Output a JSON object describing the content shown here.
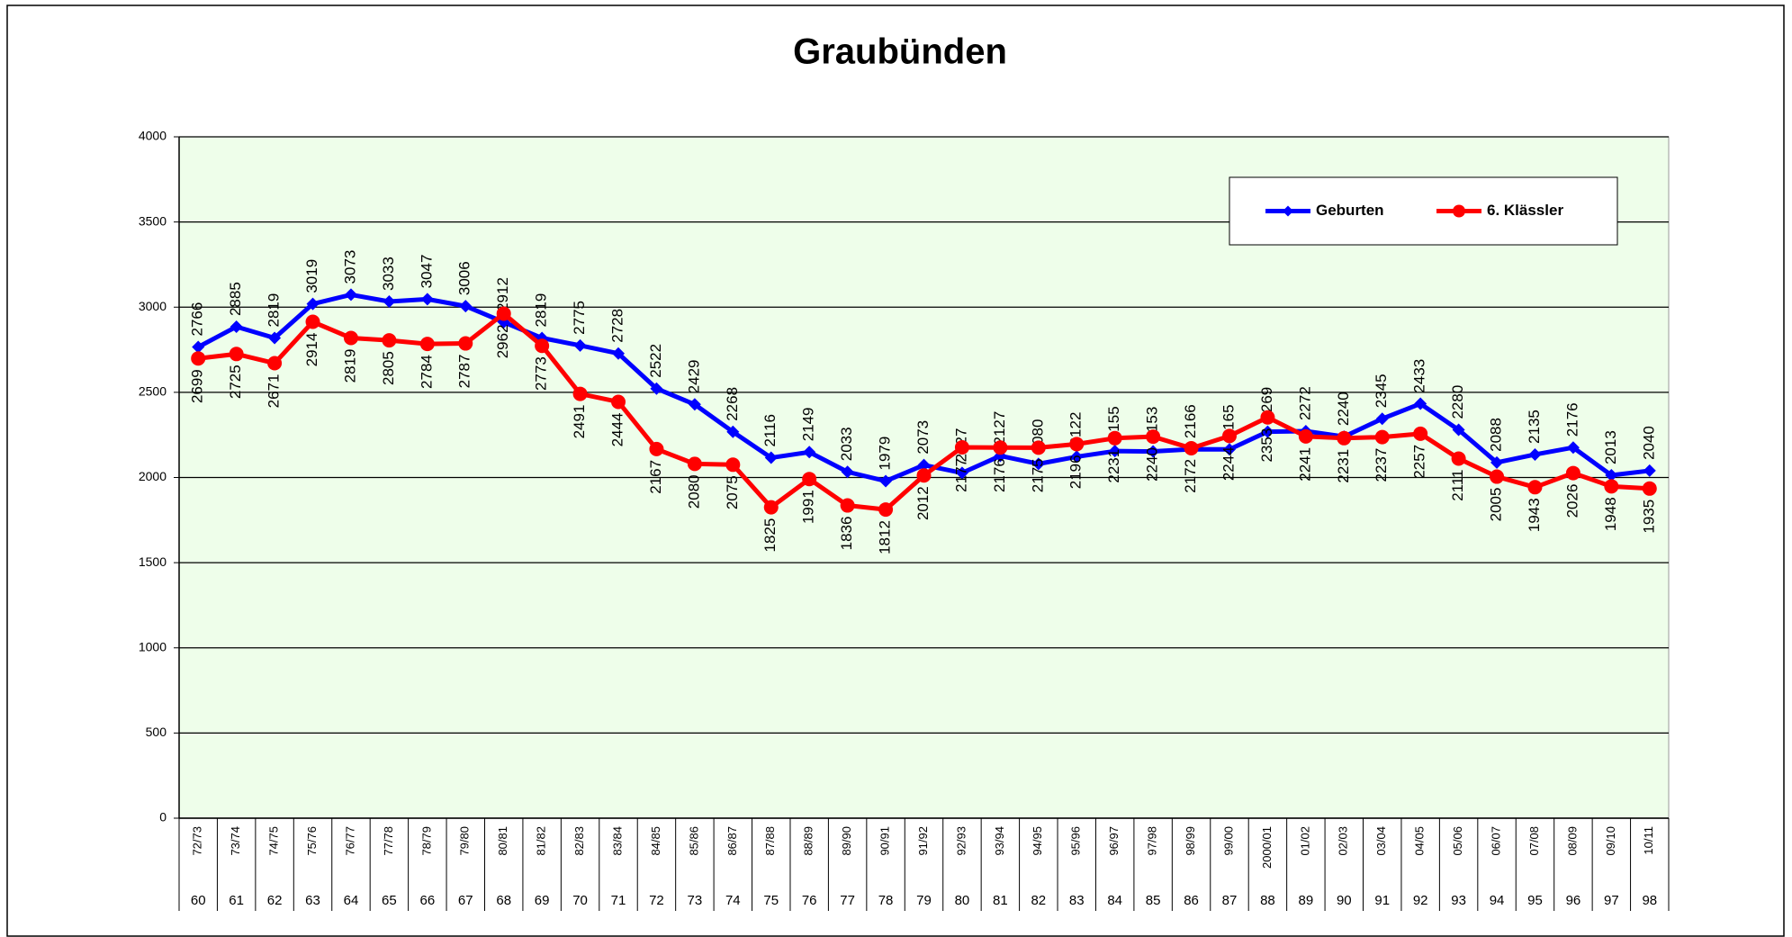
{
  "chart_data": {
    "type": "line",
    "title": "Graubünden",
    "categories": [
      "72/73",
      "73/74",
      "74/75",
      "75/76",
      "76/77",
      "77/78",
      "78/79",
      "79/80",
      "80/81",
      "81/82",
      "82/83",
      "83/84",
      "84/85",
      "85/86",
      "86/87",
      "87/88",
      "88/89",
      "89/90",
      "90/91",
      "91/92",
      "92/93",
      "93/94",
      "94/95",
      "95/96",
      "96/97",
      "97/98",
      "98/99",
      "99/00",
      "2000/01",
      "01/02",
      "02/03",
      "03/04",
      "04/05",
      "05/06",
      "06/07",
      "07/08",
      "08/09",
      "09/10",
      "10/11"
    ],
    "categories_secondary": [
      60,
      61,
      62,
      63,
      64,
      65,
      66,
      67,
      68,
      69,
      70,
      71,
      72,
      73,
      74,
      75,
      76,
      77,
      78,
      79,
      80,
      81,
      82,
      83,
      84,
      85,
      86,
      87,
      88,
      89,
      90,
      91,
      92,
      93,
      94,
      95,
      96,
      97,
      98
    ],
    "series": [
      {
        "name": "Geburten",
        "color": "#0000ff",
        "marker": "diamond",
        "values": [
          2766,
          2885,
          2819,
          3019,
          3073,
          3033,
          3047,
          3006,
          2912,
          2819,
          2775,
          2728,
          2522,
          2429,
          2268,
          2116,
          2149,
          2033,
          1979,
          2073,
          2027,
          2127,
          2080,
          2122,
          2155,
          2153,
          2166,
          2165,
          2269,
          2272,
          2240,
          2345,
          2433,
          2280,
          2088,
          2135,
          2176,
          2013,
          2040
        ]
      },
      {
        "name": "6. Klässler",
        "color": "#ff0000",
        "marker": "circle",
        "values": [
          2699,
          2725,
          2671,
          2914,
          2819,
          2805,
          2784,
          2787,
          2962,
          2773,
          2491,
          2444,
          2167,
          2080,
          2075,
          1825,
          1991,
          1836,
          1812,
          2012,
          2177,
          2176,
          2175,
          2196,
          2231,
          2240,
          2172,
          2244,
          2353,
          2241,
          2231,
          2237,
          2257,
          2111,
          2005,
          1943,
          2026,
          1948,
          1935
        ]
      }
    ],
    "ylim": [
      0,
      4000
    ],
    "yticks": [
      0,
      500,
      1000,
      1500,
      2000,
      2500,
      3000,
      3500,
      4000
    ],
    "grid": true,
    "legend": "top-right",
    "background": "#eefeea"
  }
}
